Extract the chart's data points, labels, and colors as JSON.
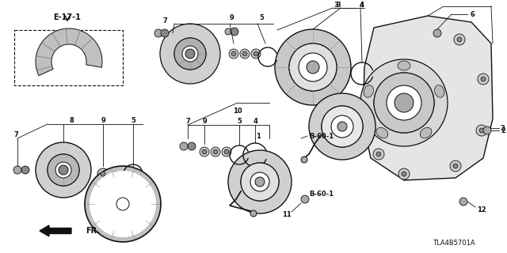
{
  "bg_color": "#ffffff",
  "line_color": "#111111",
  "diagram_id": "TLA4B5701A",
  "ref_e17": "E-17-1",
  "ref_b60": "B-60-1",
  "direction_label": "FR."
}
